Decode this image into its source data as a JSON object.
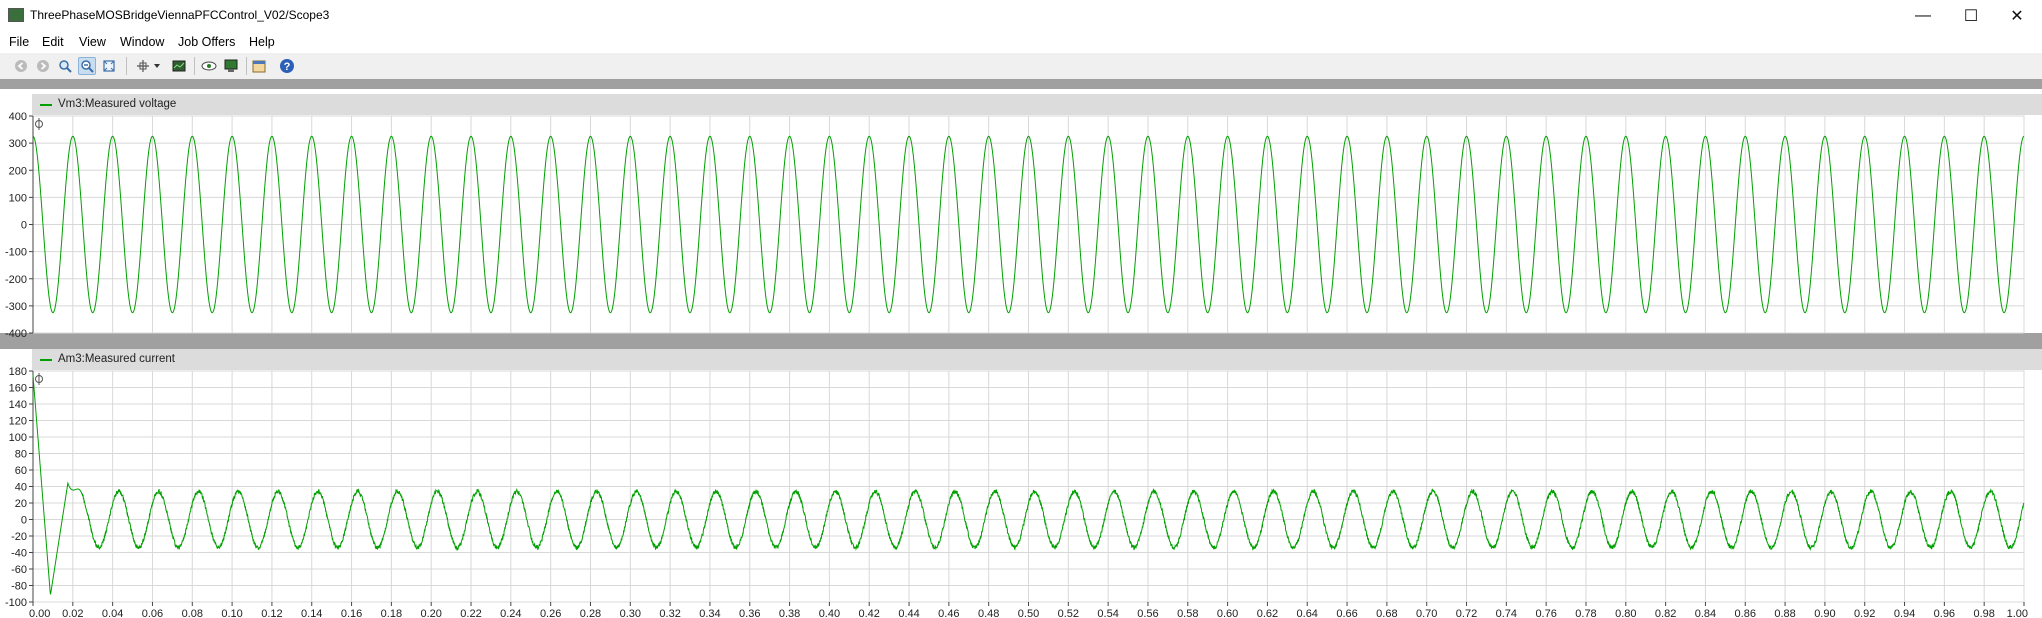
{
  "window": {
    "title": "ThreePhaseMOSBridgeViennaPFCControl_V02/Scope3",
    "minimize_glyph": "—",
    "maximize_glyph": "☐",
    "close_glyph": "✕"
  },
  "menu": {
    "file": "File",
    "edit": "Edit",
    "view": "View",
    "window": "Window",
    "job_offers": "Job Offers",
    "help": "Help"
  },
  "toolbar": {
    "icons": [
      "back-icon",
      "forward-icon",
      "zoom-icon",
      "zoom-out-icon",
      "zoom-fit-icon",
      "cursor-icon",
      "chevron-down-icon",
      "snapshot-icon",
      "eye-icon",
      "export-icon",
      "properties-icon",
      "help-icon"
    ],
    "help_glyph": "?"
  },
  "colors": {
    "trace": "#00a000",
    "grid": "#d8d8d8",
    "strip": "#dcdcdc",
    "frame": "#a0a0a0"
  },
  "chart_data": [
    {
      "type": "line",
      "series": [
        {
          "name": "Vm3:Measured voltage",
          "waveform": "sine",
          "frequency": 50,
          "amplitude": 325,
          "offset": 0
        }
      ],
      "ylim": [
        -400,
        400
      ],
      "yticks": [
        400,
        300,
        200,
        100,
        0,
        -100,
        -200,
        -300,
        -400
      ],
      "xlim": [
        0,
        1
      ],
      "grid": true,
      "legend": "top-left"
    },
    {
      "type": "line",
      "series": [
        {
          "name": "Am3:Measured current",
          "waveform": "sine",
          "frequency": 50,
          "amplitude": 34,
          "offset": 0,
          "startup_peak": 175,
          "first_trough": -92,
          "first_peak": 44
        }
      ],
      "ylim": [
        -100,
        180
      ],
      "yticks": [
        180,
        160,
        140,
        120,
        100,
        80,
        60,
        40,
        20,
        0,
        -20,
        -40,
        -60,
        -80,
        -100
      ],
      "xlim": [
        0,
        1
      ],
      "xticks": [
        "0.00",
        "0.02",
        "0.04",
        "0.06",
        "0.08",
        "0.10",
        "0.12",
        "0.14",
        "0.16",
        "0.18",
        "0.20",
        "0.22",
        "0.24",
        "0.26",
        "0.28",
        "0.30",
        "0.32",
        "0.34",
        "0.36",
        "0.38",
        "0.40",
        "0.42",
        "0.44",
        "0.46",
        "0.48",
        "0.50",
        "0.52",
        "0.54",
        "0.56",
        "0.58",
        "0.60",
        "0.62",
        "0.64",
        "0.66",
        "0.68",
        "0.70",
        "0.72",
        "0.74",
        "0.76",
        "0.78",
        "0.80",
        "0.82",
        "0.84",
        "0.86",
        "0.88",
        "0.90",
        "0.92",
        "0.94",
        "0.96",
        "0.98",
        "1.00"
      ],
      "grid": true,
      "legend": "top-left"
    }
  ]
}
